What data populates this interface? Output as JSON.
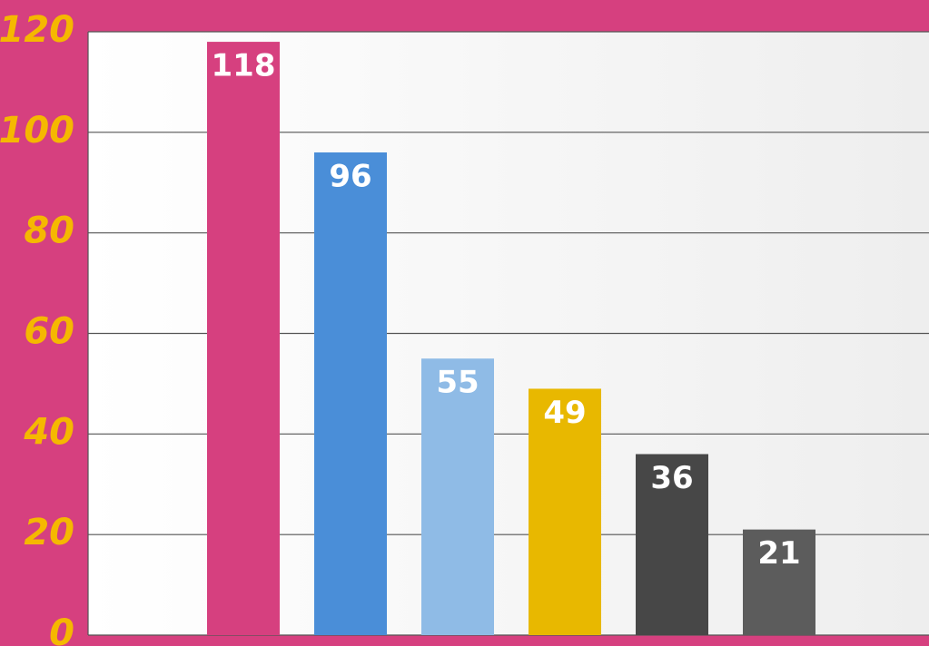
{
  "chart_data": {
    "type": "bar",
    "values": [
      118,
      96,
      55,
      49,
      36,
      21
    ],
    "colors": [
      "#d6407f",
      "#4a8ed8",
      "#8fbbe6",
      "#e8b800",
      "#474747",
      "#5c5c5c"
    ],
    "ylim": [
      0,
      120
    ],
    "yticks": [
      0,
      20,
      40,
      60,
      80,
      100,
      120
    ],
    "grid": true
  }
}
